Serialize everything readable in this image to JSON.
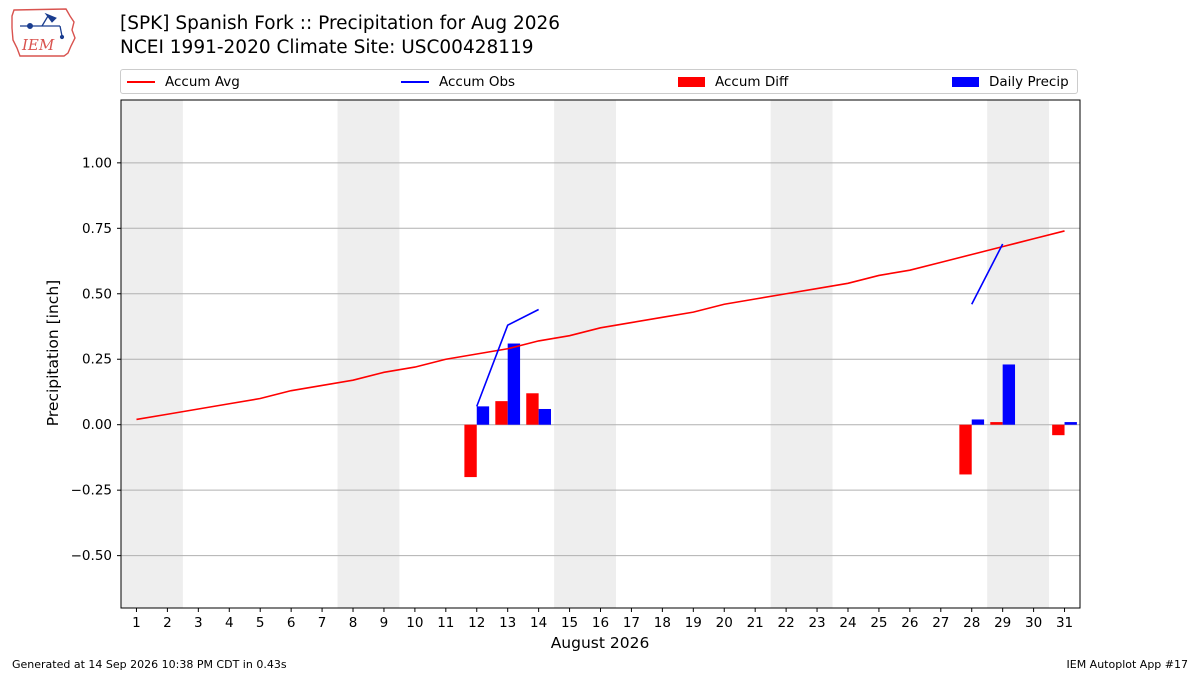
{
  "header": {
    "title_line1": "[SPK] Spanish Fork :: Precipitation for Aug 2026",
    "title_line2": "NCEI 1991-2020 Climate Site: USC00428119",
    "logo_text": "IEM"
  },
  "footer": {
    "generated": "Generated at 14 Sep 2026 10:38 PM CDT in 0.43s",
    "app": "IEM Autoplot App #17"
  },
  "chart_data": {
    "type": "bar",
    "xlabel": "August 2026",
    "ylabel": "Precipitation [inch]",
    "xlim": [
      0.5,
      31.5
    ],
    "ylim": [
      -0.7,
      1.24
    ],
    "yticks": [
      1.0,
      0.75,
      0.5,
      0.25,
      0.0,
      -0.25,
      -0.5
    ],
    "ytick_labels": [
      "1.00",
      "0.75",
      "0.50",
      "0.25",
      "0.00",
      "−0.25",
      "−0.50"
    ],
    "grid": "y",
    "legend_position": "top",
    "weekend_shading": [
      [
        0.5,
        2.5
      ],
      [
        7.5,
        9.5
      ],
      [
        14.5,
        16.5
      ],
      [
        21.5,
        23.5
      ],
      [
        28.5,
        30.5
      ]
    ],
    "x": [
      1,
      2,
      3,
      4,
      5,
      6,
      7,
      8,
      9,
      10,
      11,
      12,
      13,
      14,
      15,
      16,
      17,
      18,
      19,
      20,
      21,
      22,
      23,
      24,
      25,
      26,
      27,
      28,
      29,
      30,
      31
    ],
    "series": [
      {
        "name": "Accum Avg",
        "kind": "line",
        "color": "#ff0000",
        "values": [
          0.02,
          0.04,
          0.06,
          0.08,
          0.1,
          0.13,
          0.15,
          0.17,
          0.2,
          0.22,
          0.25,
          0.27,
          0.29,
          0.32,
          0.34,
          0.37,
          0.39,
          0.41,
          0.43,
          0.46,
          0.48,
          0.5,
          0.52,
          0.54,
          0.57,
          0.59,
          0.62,
          0.65,
          0.68,
          0.71,
          0.74
        ]
      },
      {
        "name": "Accum Obs",
        "kind": "line",
        "color": "#0000ff",
        "segments": [
          {
            "x": [
              12,
              13,
              14
            ],
            "values": [
              0.07,
              0.38,
              0.44
            ]
          },
          {
            "x": [
              28,
              29
            ],
            "values": [
              0.46,
              0.69
            ]
          }
        ]
      },
      {
        "name": "Accum Diff",
        "kind": "bar",
        "color": "#ff0000",
        "x": [
          12,
          13,
          14,
          28,
          29,
          31
        ],
        "values": [
          -0.2,
          0.09,
          0.12,
          -0.19,
          0.01,
          -0.04
        ]
      },
      {
        "name": "Daily Precip",
        "kind": "bar",
        "color": "#0000ff",
        "x": [
          12,
          13,
          14,
          28,
          29,
          31
        ],
        "values": [
          0.07,
          0.31,
          0.06,
          0.02,
          0.23,
          0.01
        ]
      }
    ]
  }
}
